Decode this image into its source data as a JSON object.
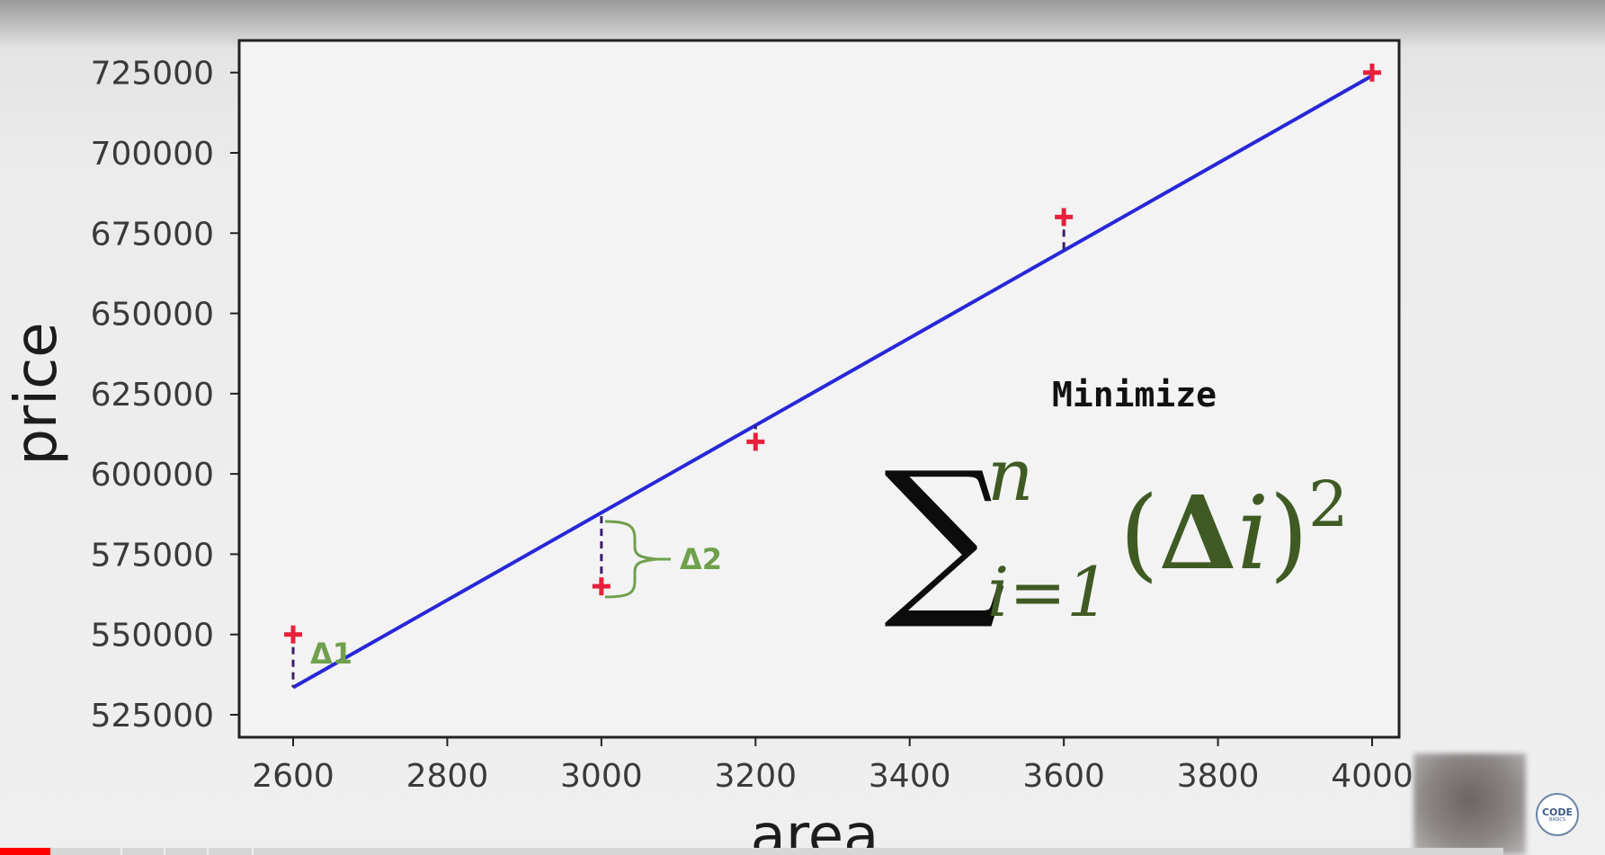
{
  "chart_data": {
    "type": "scatter",
    "xlabel": "area",
    "ylabel": "price",
    "xlim": [
      2530,
      4035
    ],
    "ylim": [
      518000,
      735000
    ],
    "xticks": [
      2600,
      2800,
      3000,
      3200,
      3400,
      3600,
      3800,
      4000
    ],
    "yticks": [
      525000,
      550000,
      575000,
      600000,
      625000,
      650000,
      675000,
      700000,
      725000
    ],
    "points": [
      {
        "x": 2600,
        "y": 550000
      },
      {
        "x": 3000,
        "y": 565000
      },
      {
        "x": 3200,
        "y": 610000
      },
      {
        "x": 3600,
        "y": 680000
      },
      {
        "x": 4000,
        "y": 725000
      }
    ],
    "fit_line": {
      "x": [
        2600,
        4000
      ],
      "y": [
        533500,
        724000
      ]
    },
    "residuals": [
      {
        "x": 2600,
        "from": 550000,
        "to": 533500,
        "label": "Δ1"
      },
      {
        "x": 3000,
        "from": 565000,
        "to": 587932,
        "label": "Δ2"
      },
      {
        "x": 3200,
        "from": 610000,
        "to": 615146
      },
      {
        "x": 3600,
        "from": 680000,
        "to": 669575
      }
    ],
    "colors": {
      "points": "#e8203b",
      "line": "#2727d8",
      "residual": "#3b1d6b",
      "brace": "#6fa04b",
      "axis": "#222222"
    },
    "grid": false
  },
  "annotation": {
    "minimize": "Minimize",
    "sigma": "∑",
    "upper": "n",
    "lower": "i=1",
    "open_paren": "(",
    "delta": "Δ",
    "i": "i",
    "close_paren": ")",
    "power": "2"
  },
  "overlay": {
    "logo_main": "CODE",
    "logo_sub": "BASICS",
    "progress_played_fraction": 0.031
  }
}
